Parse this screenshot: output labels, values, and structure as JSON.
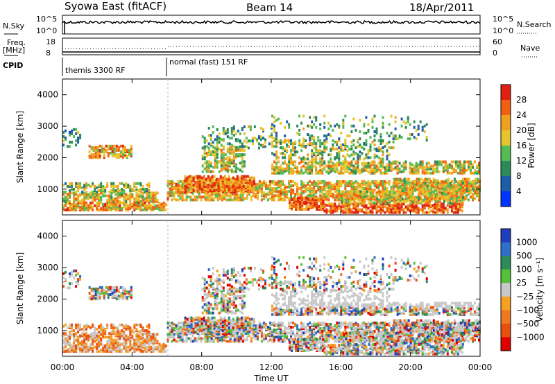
{
  "header": {
    "station": "Syowa East (fitACF)",
    "beam": "Beam 14",
    "date": "18/Apr/2011"
  },
  "panels": {
    "nsky": {
      "label": "N.Sky",
      "yticks": [
        "10^5",
        "10^0"
      ],
      "right_label": "N.Search",
      "right_yticks": [
        "10^5",
        "10^0"
      ]
    },
    "freq": {
      "label_top": "Freq.",
      "label_unit": "[MHz]",
      "yticks": [
        "18",
        "8"
      ],
      "right_label": "Nave",
      "right_yticks": [
        "60",
        "0"
      ]
    },
    "cpid": {
      "label": "CPID",
      "segments": [
        "themis 3300 RF",
        "normal (fast) 151 RF"
      ]
    }
  },
  "colors": {
    "power_scale": [
      "#0033ff",
      "#1c5ea8",
      "#2e8b57",
      "#55bb55",
      "#e7c42c",
      "#f0a020",
      "#f06010",
      "#e02010"
    ],
    "velocity_scale": [
      "#1f3fbf",
      "#2e6fc9",
      "#2e8b57",
      "#55c03a",
      "#c8c8c8",
      "#f4a020",
      "#f07820",
      "#e85010",
      "#e00000"
    ]
  },
  "chart_data": [
    {
      "type": "heatmap",
      "title": "Power",
      "xlabel": "",
      "ylabel": "Slant Range [km]",
      "x_ticks": [
        "00:00",
        "04:00",
        "08:00",
        "12:00",
        "16:00",
        "20:00",
        "00:00"
      ],
      "xlim_hours": [
        0,
        24
      ],
      "y_ticks": [
        1000,
        2000,
        3000,
        4000
      ],
      "ylim_km": [
        180,
        4500
      ],
      "colorbar": {
        "label": "Power [dB]",
        "ticks": [
          "4",
          "8",
          "12",
          "16",
          "20",
          "24",
          "28"
        ]
      },
      "grid": false
    },
    {
      "type": "heatmap",
      "title": "Velocity",
      "xlabel": "Time UT",
      "ylabel": "Slant Range [km]",
      "x_ticks": [
        "00:00",
        "04:00",
        "08:00",
        "12:00",
        "16:00",
        "20:00",
        "00:00"
      ],
      "xlim_hours": [
        0,
        24
      ],
      "y_ticks": [
        1000,
        2000,
        3000,
        4000
      ],
      "ylim_km": [
        180,
        4500
      ],
      "colorbar": {
        "label": "Velocity [m s⁻¹]",
        "ticks": [
          "1000",
          "500",
          "100",
          "25",
          "−25",
          "−100",
          "−500",
          "−1000"
        ]
      },
      "grid": false
    }
  ]
}
